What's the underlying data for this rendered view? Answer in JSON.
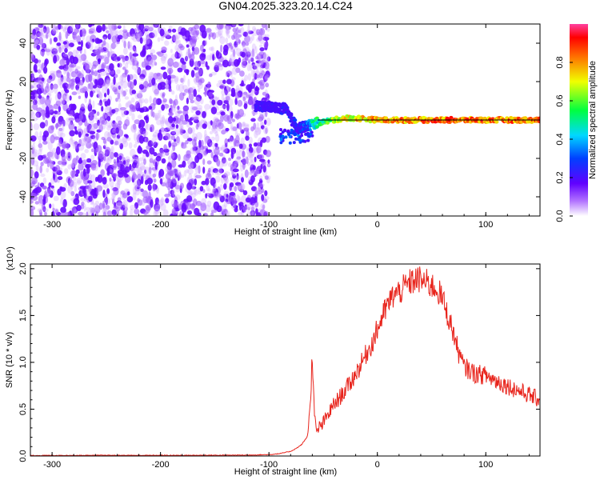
{
  "figure_title": "GN04.2025.323.20.14.C24",
  "colors": {
    "spectrogram_noise": "#7a00e6",
    "snr_line": "#e8241c",
    "zero_line": "#000000"
  },
  "chart_data": [
    {
      "type": "heatmap",
      "title": "GN04.2025.323.20.14.C24",
      "xlabel": "Height of straight line (km)",
      "ylabel": "Frequency (Hz)",
      "xlim": [
        -320,
        150
      ],
      "ylim": [
        -50,
        50
      ],
      "x_ticks": [
        "-300",
        "-200",
        "-100",
        "0",
        "100"
      ],
      "y_ticks": [
        "-40",
        "-20",
        "0",
        "20",
        "40"
      ],
      "colorbar": {
        "label": "Normalized spectral amplitude",
        "range": [
          0.0,
          1.0
        ],
        "ticks": [
          "0.0",
          "0.2",
          "0.4",
          "0.6",
          "0.8"
        ],
        "colormap": "rainbow"
      },
      "regions": [
        {
          "description_x_range": [
            -320,
            -100
          ],
          "level": 0.05
        },
        {
          "description_x_range": [
            -112,
            -80
          ],
          "frequency_hz": 7,
          "level": 0.25
        },
        {
          "description_x_range": [
            -80,
            -60
          ],
          "frequency_hz": -3,
          "level": 0.3
        },
        {
          "description_x_range": [
            -60,
            150
          ],
          "frequency_hz": 0,
          "level": 0.95
        }
      ],
      "track": {
        "x": [
          -112,
          -100,
          -90,
          -85,
          -80,
          -75,
          -70,
          -65,
          -60,
          -50,
          -40,
          -30,
          -20,
          0,
          50,
          100,
          150
        ],
        "freq": [
          7,
          7,
          6,
          6,
          1,
          -3,
          -4,
          -3,
          -2,
          -1,
          0,
          1,
          1,
          0,
          0,
          0,
          0
        ],
        "level": [
          0.25,
          0.22,
          0.25,
          0.28,
          0.3,
          0.3,
          0.32,
          0.4,
          0.55,
          0.65,
          0.75,
          0.8,
          0.85,
          0.9,
          0.95,
          0.95,
          0.95
        ]
      },
      "zero_line": true
    },
    {
      "type": "line",
      "xlabel": "Height of straight line (km)",
      "ylabel": "SNR (10 * v/v)",
      "y_multiplier": "(x10⁴)",
      "xlim": [
        -320,
        150
      ],
      "ylim": [
        0,
        2.05
      ],
      "x_ticks": [
        "-300",
        "-200",
        "-100",
        "0",
        "100"
      ],
      "y_ticks": [
        "0.0",
        "0.5",
        "1.0",
        "1.5",
        "2.0"
      ],
      "series": [
        {
          "x": [
            -320,
            -300,
            -250,
            -200,
            -150,
            -120,
            -100,
            -90,
            -80,
            -75,
            -70,
            -65,
            -62,
            -60,
            -58,
            -56,
            -54,
            -52,
            -50,
            -45,
            -40,
            -35,
            -30,
            -25,
            -20,
            -15,
            -10,
            -5,
            0,
            5,
            10,
            15,
            20,
            25,
            30,
            35,
            40,
            45,
            50,
            55,
            60,
            65,
            70,
            75,
            80,
            90,
            100,
            110,
            120,
            130,
            140,
            150
          ],
          "y": [
            0.005,
            0.006,
            0.007,
            0.007,
            0.008,
            0.01,
            0.015,
            0.025,
            0.05,
            0.08,
            0.12,
            0.2,
            0.5,
            1.1,
            0.4,
            0.25,
            0.3,
            0.32,
            0.35,
            0.45,
            0.55,
            0.62,
            0.7,
            0.78,
            0.88,
            0.98,
            1.1,
            1.2,
            1.35,
            1.5,
            1.62,
            1.72,
            1.75,
            1.8,
            1.85,
            1.88,
            1.88,
            1.85,
            1.82,
            1.78,
            1.68,
            1.5,
            1.32,
            1.1,
            0.95,
            0.88,
            0.86,
            0.8,
            0.75,
            0.7,
            0.65,
            0.6
          ]
        }
      ]
    }
  ]
}
